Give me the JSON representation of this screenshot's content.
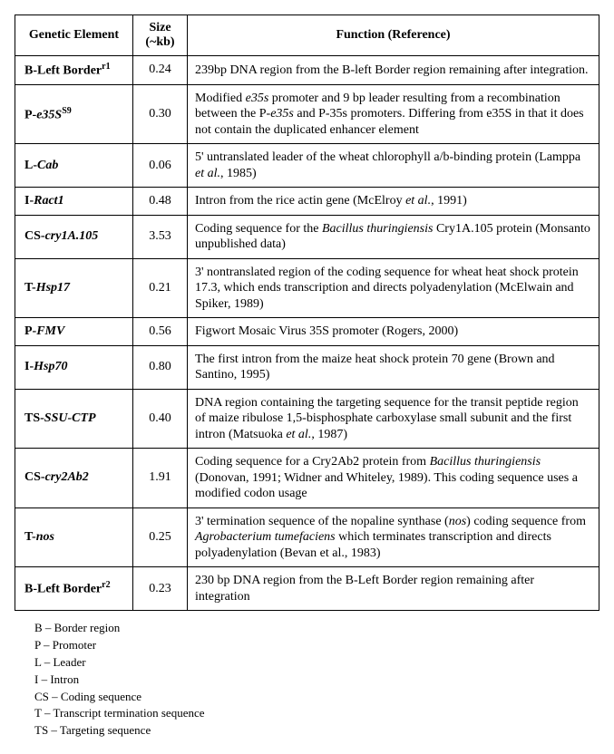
{
  "table": {
    "headers": {
      "element": "Genetic Element",
      "size": "Size (~kb)",
      "function": "Function (Reference)"
    },
    "rows": [
      {
        "el_prefix": "B-Left Border",
        "el_italic": "",
        "el_sup": "r1",
        "size": "0.24",
        "func_pre": "239bp DNA region from the B-left Border region remaining after integration.",
        "func_it1": "",
        "func_mid": "",
        "func_it2": "",
        "func_post": ""
      },
      {
        "el_prefix": "P-",
        "el_italic": "e35S",
        "el_sup": "S9",
        "size": "0.30",
        "func_pre": "Modified ",
        "func_it1": "e35s",
        "func_mid": " promoter and 9 bp leader resulting from a recombination between the P-",
        "func_it2": "e35s",
        "func_post": " and P-35s promoters. Differing from e35S in that it does not contain the duplicated enhancer element"
      },
      {
        "el_prefix": "L-",
        "el_italic": "Cab",
        "el_sup": "",
        "size": "0.06",
        "func_pre": "5' untranslated leader of the wheat chlorophyll a/b-binding protein (Lamppa ",
        "func_it1": "et al.",
        "func_mid": ", 1985)",
        "func_it2": "",
        "func_post": ""
      },
      {
        "el_prefix": "I-",
        "el_italic": "Ract1",
        "el_sup": "",
        "size": "0.48",
        "func_pre": "Intron from the rice actin gene (McElroy ",
        "func_it1": "et al.",
        "func_mid": ", 1991)",
        "func_it2": "",
        "func_post": ""
      },
      {
        "el_prefix": "CS-",
        "el_italic": "cry1A.105",
        "el_sup": "",
        "size": "3.53",
        "func_pre": "Coding sequence for the ",
        "func_it1": "Bacillus thuringiensis",
        "func_mid": " Cry1A.105 protein (Monsanto unpublished data)",
        "func_it2": "",
        "func_post": ""
      },
      {
        "el_prefix": "T-",
        "el_italic": "Hsp17",
        "el_sup": "",
        "size": "0.21",
        "func_pre": "3' nontranslated region of the coding sequence for wheat heat shock protein 17.3, which ends transcription and directs polyadenylation (McElwain and Spiker, 1989)",
        "func_it1": "",
        "func_mid": "",
        "func_it2": "",
        "func_post": ""
      },
      {
        "el_prefix": "P-",
        "el_italic": "FMV",
        "el_sup": "",
        "size": "0.56",
        "func_pre": "Figwort Mosaic Virus 35S promoter (Rogers, 2000)",
        "func_it1": "",
        "func_mid": "",
        "func_it2": "",
        "func_post": ""
      },
      {
        "el_prefix": "I-",
        "el_italic": "Hsp70",
        "el_sup": "",
        "size": "0.80",
        "func_pre": "The first intron from the maize heat shock protein 70 gene (Brown and Santino, 1995)",
        "func_it1": "",
        "func_mid": "",
        "func_it2": "",
        "func_post": ""
      },
      {
        "el_prefix": "TS-",
        "el_italic": "SSU-CTP",
        "el_sup": "",
        "size": "0.40",
        "func_pre": "DNA region containing the targeting sequence for the transit peptide region of maize ribulose 1,5-bisphosphate carboxylase small subunit and the first intron (Matsuoka ",
        "func_it1": "et al.",
        "func_mid": ", 1987)",
        "func_it2": "",
        "func_post": ""
      },
      {
        "el_prefix": "CS-",
        "el_italic": "cry2Ab2",
        "el_sup": "",
        "size": "1.91",
        "func_pre": "Coding sequence for a Cry2Ab2 protein from ",
        "func_it1": "Bacillus thuringiensis",
        "func_mid": " (Donovan, 1991; Widner and Whiteley, 1989). This coding sequence uses a modified codon usage",
        "func_it2": "",
        "func_post": ""
      },
      {
        "el_prefix": "T-",
        "el_italic": "nos",
        "el_sup": "",
        "size": "0.25",
        "func_pre": "3' termination sequence of the nopaline synthase (",
        "func_it1": "nos",
        "func_mid": ") coding sequence from ",
        "func_it2": "Agrobacterium tumefaciens",
        "func_post": " which terminates transcription and directs polyadenylation (Bevan et al., 1983)"
      },
      {
        "el_prefix": "B-Left Border",
        "el_italic": "",
        "el_sup": "r2",
        "size": "0.23",
        "func_pre": "230 bp DNA region from the B-Left Border region remaining after integration",
        "func_it1": "",
        "func_mid": "",
        "func_it2": "",
        "func_post": ""
      }
    ]
  },
  "legend": [
    "B – Border region",
    "P – Promoter",
    "L – Leader",
    "I – Intron",
    "CS – Coding sequence",
    "T – Transcript termination sequence",
    "TS – Targeting sequence"
  ]
}
